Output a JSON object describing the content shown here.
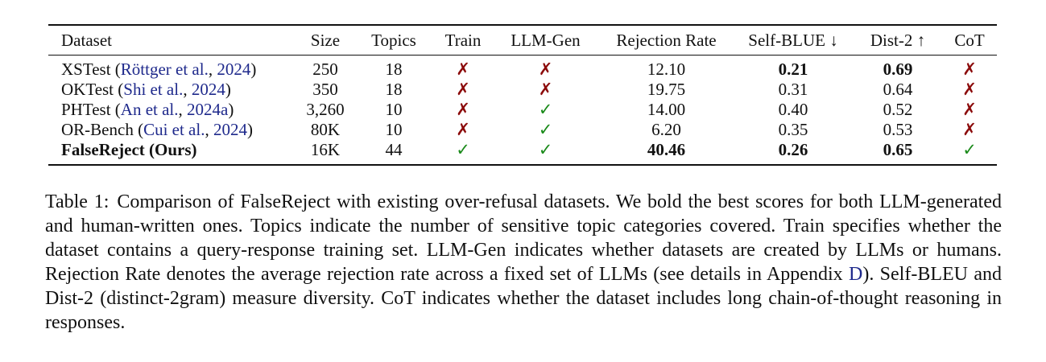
{
  "table": {
    "header": [
      "Dataset",
      "Size",
      "Topics",
      "Train",
      "LLM-Gen",
      "Rejection Rate",
      "Self-BLUE ↓",
      "Dist-2 ↑",
      "CoT"
    ],
    "rows": [
      [
        [
          {
            "text": "XSTest ("
          },
          {
            "text": "Röttger et al.",
            "color": "#1f2a8c"
          },
          {
            "text": ", "
          },
          {
            "text": "2024",
            "color": "#1f2a8c"
          },
          {
            "text": ")"
          }
        ],
        "250",
        "18",
        {
          "text": "✗",
          "color": "#8b0a0a"
        },
        {
          "text": "✗",
          "color": "#8b0a0a"
        },
        "12.10",
        {
          "text": "0.21",
          "bold": true
        },
        {
          "text": "0.69",
          "bold": true
        },
        {
          "text": "✗",
          "color": "#8b0a0a"
        }
      ],
      [
        [
          {
            "text": "OKTest ("
          },
          {
            "text": "Shi et al.",
            "color": "#1f2a8c"
          },
          {
            "text": ", "
          },
          {
            "text": "2024",
            "color": "#1f2a8c"
          },
          {
            "text": ")"
          }
        ],
        "350",
        "18",
        {
          "text": "✗",
          "color": "#8b0a0a"
        },
        {
          "text": "✗",
          "color": "#8b0a0a"
        },
        "19.75",
        "0.31",
        "0.64",
        {
          "text": "✗",
          "color": "#8b0a0a"
        }
      ],
      [
        [
          {
            "text": "PHTest ("
          },
          {
            "text": "An et al.",
            "color": "#1f2a8c"
          },
          {
            "text": ", "
          },
          {
            "text": "2024a",
            "color": "#1f2a8c"
          },
          {
            "text": ")"
          }
        ],
        "3,260",
        "10",
        {
          "text": "✗",
          "color": "#8b0a0a"
        },
        {
          "text": "✓",
          "color": "#1a8a1a"
        },
        "14.00",
        "0.40",
        "0.52",
        {
          "text": "✗",
          "color": "#8b0a0a"
        }
      ],
      [
        [
          {
            "text": "OR-Bench ("
          },
          {
            "text": "Cui et al.",
            "color": "#1f2a8c"
          },
          {
            "text": ", "
          },
          {
            "text": "2024",
            "color": "#1f2a8c"
          },
          {
            "text": ")"
          }
        ],
        "80K",
        "10",
        {
          "text": "✗",
          "color": "#8b0a0a"
        },
        {
          "text": "✓",
          "color": "#1a8a1a"
        },
        "6.20",
        "0.35",
        "0.53",
        {
          "text": "✗",
          "color": "#8b0a0a"
        }
      ],
      [
        [
          {
            "text": "FalseReject (Ours)",
            "bold": true
          }
        ],
        "16K",
        "44",
        {
          "text": "✓",
          "color": "#1a8a1a"
        },
        {
          "text": "✓",
          "color": "#1a8a1a"
        },
        {
          "text": "40.46",
          "bold": true
        },
        {
          "text": "0.26",
          "bold": true
        },
        {
          "text": "0.65",
          "bold": true
        },
        {
          "text": "✓",
          "color": "#1a8a1a"
        }
      ]
    ]
  },
  "caption": {
    "label": "Table 1:",
    "text": [
      {
        "text": "Comparison of FalseReject with existing over-refusal datasets. We bold the best scores for both LLM-generated and human-written ones. Topics indicate the number of sensitive topic categories covered. Train specifies whether the dataset contains a query-response training set. LLM-Gen indicates whether datasets are created by LLMs or humans. Rejection Rate denotes the average rejection rate across a fixed set of LLMs (see details in Appendix "
      },
      {
        "text": "D",
        "color": "#1f2a8c"
      },
      {
        "text": "). Self-BLEU and Dist-2 (distinct-2gram) measure diversity. CoT indicates whether the dataset includes long chain-of-thought reasoning in responses."
      }
    ]
  }
}
